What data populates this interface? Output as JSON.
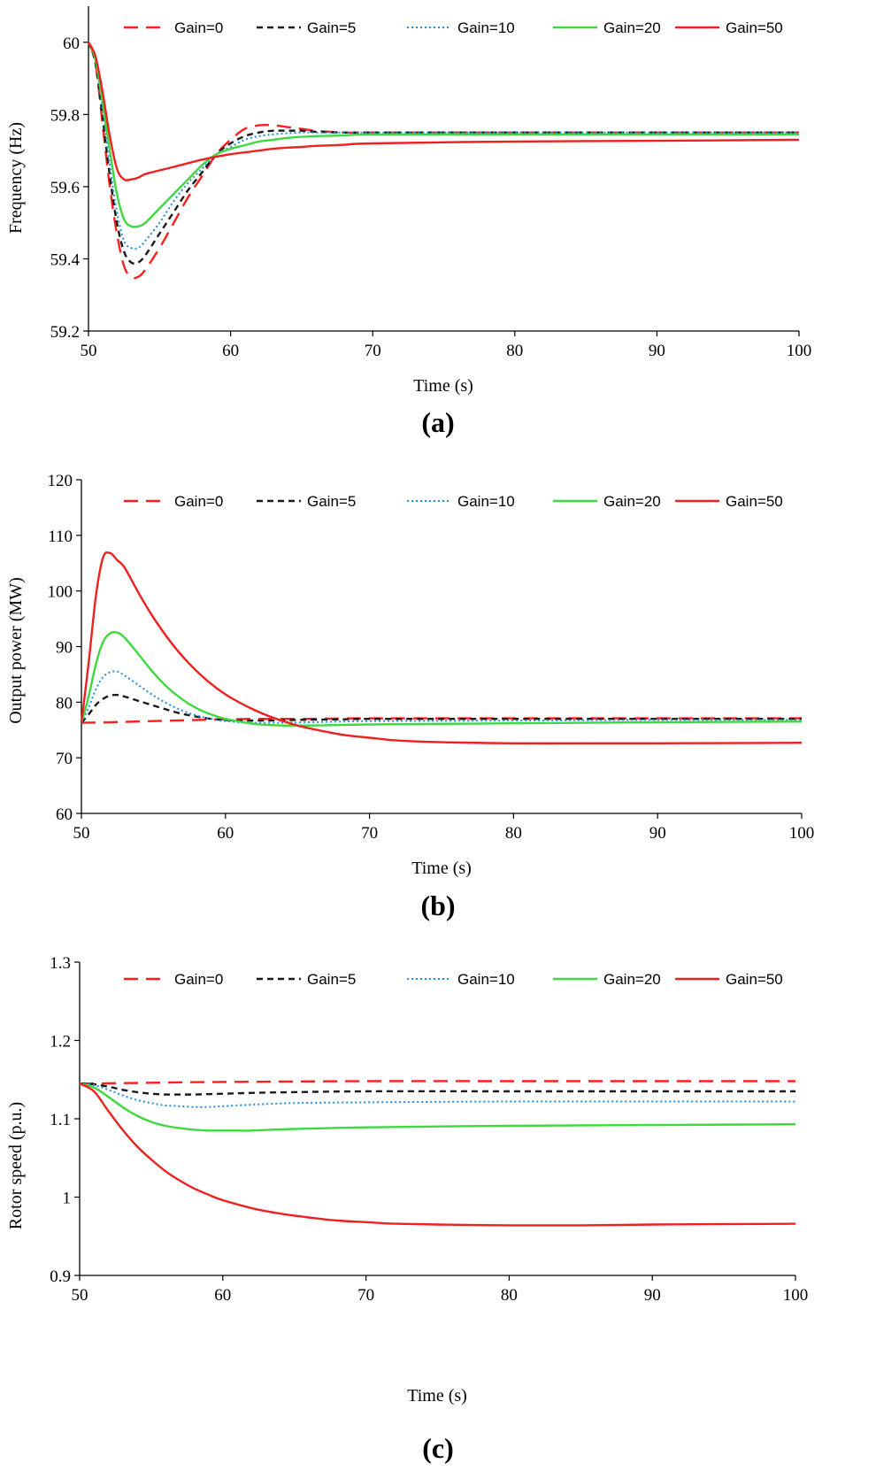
{
  "figure": {
    "legend": [
      "Gain=0",
      "Gain=5",
      "Gain=10",
      "Gain=20",
      "Gain=50"
    ]
  },
  "chart_data": [
    {
      "type": "line",
      "panel_label": "(a)",
      "title": "",
      "xlabel": "Time (s)",
      "ylabel": "Frequency (Hz)",
      "xlim": [
        50,
        100
      ],
      "ylim": [
        59.2,
        60.1
      ],
      "xticks": [
        "50",
        "60",
        "70",
        "80",
        "90",
        "100"
      ],
      "yticks": [
        "59.2",
        "59.4",
        "59.6",
        "59.8",
        "60"
      ],
      "legend_position": "top",
      "series": [
        {
          "name": "Gain=0",
          "color": "#ff1f1f",
          "dash": "dash",
          "x": [
            50,
            50.5,
            51,
            51.5,
            52,
            52.5,
            53,
            53.5,
            54,
            55,
            56,
            57,
            58,
            59,
            60,
            61,
            62,
            63,
            64,
            65,
            66,
            68,
            70,
            80,
            90,
            100
          ],
          "y": [
            60.0,
            59.94,
            59.77,
            59.6,
            59.47,
            59.38,
            59.35,
            59.35,
            59.37,
            59.43,
            59.5,
            59.57,
            59.63,
            59.69,
            59.73,
            59.76,
            59.77,
            59.77,
            59.765,
            59.76,
            59.755,
            59.75,
            59.75,
            59.75,
            59.75,
            59.75
          ]
        },
        {
          "name": "Gain=5",
          "color": "#1a1a1a",
          "dash": "shortdash",
          "x": [
            50,
            50.5,
            51,
            51.5,
            52,
            52.5,
            53,
            53.5,
            54,
            55,
            56,
            57,
            58,
            59,
            60,
            61,
            62,
            63,
            64,
            65,
            66,
            68,
            70,
            80,
            90,
            100
          ],
          "y": [
            60.0,
            59.94,
            59.79,
            59.63,
            59.5,
            59.42,
            59.39,
            59.39,
            59.41,
            59.47,
            59.53,
            59.59,
            59.64,
            59.69,
            59.72,
            59.74,
            59.75,
            59.755,
            59.755,
            59.755,
            59.752,
            59.75,
            59.75,
            59.75,
            59.75,
            59.75
          ]
        },
        {
          "name": "Gain=10",
          "color": "#1f8ee0",
          "dash": "dot",
          "x": [
            50,
            50.5,
            51,
            51.5,
            52,
            52.5,
            53,
            53.5,
            54,
            55,
            56,
            57,
            58,
            59,
            60,
            61,
            62,
            63,
            64,
            65,
            66,
            68,
            70,
            80,
            90,
            100
          ],
          "y": [
            60.0,
            59.95,
            59.81,
            59.66,
            59.53,
            59.45,
            59.43,
            59.43,
            59.45,
            59.5,
            59.56,
            59.61,
            59.65,
            59.69,
            59.71,
            59.73,
            59.74,
            59.745,
            59.748,
            59.75,
            59.75,
            59.75,
            59.75,
            59.75,
            59.75,
            59.75
          ]
        },
        {
          "name": "Gain=20",
          "color": "#3ed93e",
          "dash": "solid",
          "x": [
            50,
            50.5,
            51,
            51.5,
            52,
            52.5,
            53,
            53.5,
            54,
            55,
            56,
            57,
            58,
            59,
            60,
            61,
            62,
            63,
            64,
            65,
            66,
            68,
            70,
            80,
            90,
            100
          ],
          "y": [
            60.0,
            59.95,
            59.83,
            59.7,
            59.58,
            59.51,
            59.49,
            59.49,
            59.5,
            59.54,
            59.58,
            59.62,
            59.66,
            59.69,
            59.705,
            59.715,
            59.725,
            59.73,
            59.735,
            59.738,
            59.74,
            59.742,
            59.745,
            59.745,
            59.745,
            59.745
          ]
        },
        {
          "name": "Gain=50",
          "color": "#ef2020",
          "dash": "solid",
          "x": [
            50,
            50.5,
            51,
            51.5,
            52,
            52.5,
            53,
            53.5,
            54,
            55,
            56,
            57,
            58,
            59,
            60,
            61,
            62,
            63,
            64,
            65,
            66,
            68,
            70,
            80,
            90,
            100
          ],
          "y": [
            60.0,
            59.96,
            59.86,
            59.74,
            59.65,
            59.62,
            59.62,
            59.625,
            59.635,
            59.645,
            59.655,
            59.665,
            59.675,
            59.683,
            59.69,
            59.695,
            59.7,
            59.705,
            59.708,
            59.71,
            59.713,
            59.716,
            59.72,
            59.725,
            59.727,
            59.73
          ]
        }
      ]
    },
    {
      "type": "line",
      "panel_label": "(b)",
      "title": "",
      "xlabel": "Time (s)",
      "ylabel": "Output power (MW)",
      "xlim": [
        50,
        100
      ],
      "ylim": [
        60,
        120
      ],
      "xticks": [
        "50",
        "60",
        "70",
        "80",
        "90",
        "100"
      ],
      "yticks": [
        "60",
        "70",
        "80",
        "90",
        "100",
        "110",
        "120"
      ],
      "legend_position": "top",
      "series": [
        {
          "name": "Gain=0",
          "color": "#ff1f1f",
          "dash": "dash",
          "x": [
            50,
            52,
            55,
            58,
            60,
            62,
            65,
            70,
            80,
            90,
            100
          ],
          "y": [
            76.3,
            76.4,
            76.6,
            76.8,
            76.9,
            77.0,
            77.0,
            77.1,
            77.1,
            77.1,
            77.1
          ]
        },
        {
          "name": "Gain=5",
          "color": "#1a1a1a",
          "dash": "shortdash",
          "x": [
            50,
            50.5,
            51,
            51.5,
            52,
            52.5,
            53,
            54,
            55,
            56,
            57,
            58,
            59,
            60,
            61,
            62,
            63,
            64,
            65,
            66,
            68,
            70,
            80,
            90,
            100
          ],
          "y": [
            76.3,
            77.8,
            79.5,
            80.6,
            81.2,
            81.3,
            81.0,
            80.2,
            79.4,
            78.6,
            77.9,
            77.4,
            77.0,
            76.8,
            76.7,
            76.7,
            76.7,
            76.75,
            76.8,
            76.85,
            76.9,
            77.0,
            77.0,
            77.0,
            77.0
          ]
        },
        {
          "name": "Gain=10",
          "color": "#1f8ee0",
          "dash": "dot",
          "x": [
            50,
            50.5,
            51,
            51.5,
            52,
            52.5,
            53,
            54,
            55,
            56,
            57,
            58,
            59,
            60,
            61,
            62,
            63,
            64,
            65,
            66,
            68,
            70,
            80,
            90,
            100
          ],
          "y": [
            76.3,
            79.0,
            82.3,
            84.5,
            85.4,
            85.5,
            84.8,
            83.0,
            81.2,
            79.7,
            78.5,
            77.6,
            77.0,
            76.6,
            76.4,
            76.3,
            76.3,
            76.3,
            76.35,
            76.4,
            76.5,
            76.6,
            76.7,
            76.8,
            76.8
          ]
        },
        {
          "name": "Gain=20",
          "color": "#3ed93e",
          "dash": "solid",
          "x": [
            50,
            50.5,
            51,
            51.5,
            52,
            52.5,
            53,
            54,
            55,
            56,
            57,
            58,
            59,
            60,
            61,
            62,
            63,
            64,
            65,
            66,
            68,
            70,
            80,
            90,
            100
          ],
          "y": [
            76.3,
            81.0,
            86.8,
            90.8,
            92.4,
            92.5,
            91.6,
            88.5,
            85.3,
            82.6,
            80.5,
            78.9,
            77.8,
            77.0,
            76.5,
            76.1,
            75.9,
            75.8,
            75.8,
            75.8,
            75.9,
            76.0,
            76.2,
            76.4,
            76.5
          ]
        },
        {
          "name": "Gain=50",
          "color": "#ef2020",
          "dash": "solid",
          "x": [
            50,
            50.5,
            51,
            51.5,
            52,
            52.5,
            53,
            54,
            55,
            56,
            57,
            58,
            59,
            60,
            61,
            62,
            63,
            64,
            65,
            66,
            68,
            70,
            72,
            75,
            80,
            85,
            90,
            100
          ],
          "y": [
            76.3,
            87.0,
            99.0,
            106.0,
            106.8,
            105.5,
            104.2,
            99.5,
            95.2,
            91.5,
            88.3,
            85.6,
            83.3,
            81.4,
            79.9,
            78.6,
            77.5,
            76.6,
            75.8,
            75.2,
            74.2,
            73.6,
            73.1,
            72.8,
            72.6,
            72.6,
            72.6,
            72.7
          ]
        }
      ]
    },
    {
      "type": "line",
      "panel_label": "(c)",
      "title": "",
      "xlabel": "Time (s)",
      "ylabel": "Rotor speed (p.u.)",
      "xlim": [
        50,
        100
      ],
      "ylim": [
        0.9,
        1.3
      ],
      "xticks": [
        "50",
        "60",
        "70",
        "80",
        "90",
        "100"
      ],
      "yticks": [
        "0.9",
        "1",
        "1.1",
        "1.2",
        "1.3"
      ],
      "legend_position": "top",
      "series": [
        {
          "name": "Gain=0",
          "color": "#ff1f1f",
          "dash": "dash",
          "x": [
            50,
            51,
            55,
            60,
            70,
            80,
            90,
            100
          ],
          "y": [
            1.145,
            1.145,
            1.146,
            1.147,
            1.148,
            1.148,
            1.148,
            1.148
          ]
        },
        {
          "name": "Gain=5",
          "color": "#1a1a1a",
          "dash": "shortdash",
          "x": [
            50,
            51,
            52,
            53,
            54,
            55,
            56,
            57,
            58,
            60,
            62,
            65,
            70,
            80,
            90,
            100
          ],
          "y": [
            1.145,
            1.144,
            1.141,
            1.137,
            1.134,
            1.132,
            1.131,
            1.131,
            1.131,
            1.132,
            1.133,
            1.134,
            1.135,
            1.135,
            1.135,
            1.135
          ]
        },
        {
          "name": "Gain=10",
          "color": "#1f8ee0",
          "dash": "dot",
          "x": [
            50,
            51,
            52,
            53,
            54,
            55,
            56,
            57,
            58,
            59,
            60,
            62,
            65,
            70,
            80,
            90,
            100
          ],
          "y": [
            1.145,
            1.143,
            1.137,
            1.13,
            1.124,
            1.12,
            1.117,
            1.116,
            1.115,
            1.115,
            1.116,
            1.118,
            1.12,
            1.121,
            1.122,
            1.122,
            1.122
          ]
        },
        {
          "name": "Gain=20",
          "color": "#3ed93e",
          "dash": "solid",
          "x": [
            50,
            51,
            52,
            53,
            54,
            55,
            56,
            57,
            58,
            59,
            60,
            61,
            62,
            65,
            70,
            80,
            90,
            100
          ],
          "y": [
            1.145,
            1.14,
            1.128,
            1.115,
            1.104,
            1.096,
            1.091,
            1.088,
            1.086,
            1.085,
            1.085,
            1.085,
            1.085,
            1.087,
            1.089,
            1.091,
            1.092,
            1.093
          ]
        },
        {
          "name": "Gain=50",
          "color": "#ef2020",
          "dash": "solid",
          "x": [
            50,
            51,
            52,
            53,
            54,
            55,
            56,
            57,
            58,
            59,
            60,
            62,
            64,
            66,
            68,
            70,
            72,
            75,
            80,
            85,
            90,
            100
          ],
          "y": [
            1.145,
            1.135,
            1.11,
            1.086,
            1.065,
            1.048,
            1.033,
            1.021,
            1.011,
            1.003,
            0.996,
            0.986,
            0.979,
            0.974,
            0.97,
            0.968,
            0.966,
            0.965,
            0.964,
            0.964,
            0.965,
            0.966
          ]
        }
      ]
    }
  ]
}
